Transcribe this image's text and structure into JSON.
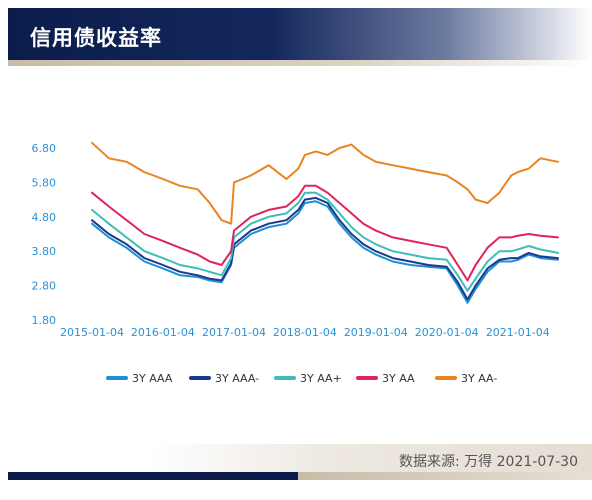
{
  "header": {
    "title": "信用债收益率"
  },
  "source": {
    "text": "数据来源:  万得 2021-07-30"
  },
  "chart_data": {
    "type": "line",
    "title": "",
    "xlabel": "",
    "ylabel": "",
    "ylim": [
      1.8,
      6.8
    ],
    "yticks": [
      "1.80",
      "2.80",
      "3.80",
      "4.80",
      "5.80",
      "6.80"
    ],
    "xlim": [
      "2015-01-04",
      "2021-07-30"
    ],
    "xticks": [
      "2015-01-04",
      "2016-01-04",
      "2017-01-04",
      "2018-01-04",
      "2019-01-04",
      "2020-01-04",
      "2021-01-04"
    ],
    "grid": false,
    "legend_position": "bottom",
    "series": [
      {
        "name": "3Y AAA",
        "color": "#1f8fd4",
        "x": [
          "2015-01-04",
          "2015-04-01",
          "2015-07-01",
          "2015-10-01",
          "2016-01-04",
          "2016-04-01",
          "2016-07-01",
          "2016-09-01",
          "2016-11-01",
          "2016-12-20",
          "2017-01-04",
          "2017-04-01",
          "2017-07-01",
          "2017-10-01",
          "2017-12-01",
          "2018-01-04",
          "2018-03-01",
          "2018-05-01",
          "2018-07-01",
          "2018-09-01",
          "2018-11-01",
          "2019-01-04",
          "2019-04-01",
          "2019-07-01",
          "2019-10-01",
          "2020-01-04",
          "2020-03-01",
          "2020-04-20",
          "2020-06-01",
          "2020-08-01",
          "2020-10-01",
          "2020-12-01",
          "2021-01-04",
          "2021-03-01",
          "2021-05-01",
          "2021-07-30"
        ],
        "y": [
          4.6,
          4.2,
          3.9,
          3.5,
          3.3,
          3.1,
          3.05,
          2.95,
          2.9,
          3.4,
          3.9,
          4.3,
          4.5,
          4.6,
          4.9,
          5.2,
          5.25,
          5.1,
          4.6,
          4.2,
          3.9,
          3.7,
          3.5,
          3.4,
          3.35,
          3.3,
          2.8,
          2.3,
          2.7,
          3.2,
          3.5,
          3.5,
          3.55,
          3.7,
          3.6,
          3.55
        ]
      },
      {
        "name": "3Y AAA-",
        "color": "#1a3a8c",
        "x": [
          "2015-01-04",
          "2015-04-01",
          "2015-07-01",
          "2015-10-01",
          "2016-01-04",
          "2016-04-01",
          "2016-07-01",
          "2016-09-01",
          "2016-11-01",
          "2016-12-20",
          "2017-01-04",
          "2017-04-01",
          "2017-07-01",
          "2017-10-01",
          "2017-12-01",
          "2018-01-04",
          "2018-03-01",
          "2018-05-01",
          "2018-07-01",
          "2018-09-01",
          "2018-11-01",
          "2019-01-04",
          "2019-04-01",
          "2019-07-01",
          "2019-10-01",
          "2020-01-04",
          "2020-03-01",
          "2020-04-20",
          "2020-06-01",
          "2020-08-01",
          "2020-10-01",
          "2020-12-01",
          "2021-01-04",
          "2021-03-01",
          "2021-05-01",
          "2021-07-30"
        ],
        "y": [
          4.7,
          4.3,
          4.0,
          3.6,
          3.4,
          3.2,
          3.1,
          3.0,
          2.95,
          3.45,
          4.0,
          4.4,
          4.6,
          4.7,
          5.0,
          5.3,
          5.35,
          5.2,
          4.7,
          4.3,
          4.0,
          3.8,
          3.6,
          3.5,
          3.4,
          3.35,
          2.9,
          2.4,
          2.8,
          3.3,
          3.55,
          3.6,
          3.6,
          3.75,
          3.65,
          3.6
        ]
      },
      {
        "name": "3Y AA+",
        "color": "#3fbcbc",
        "x": [
          "2015-01-04",
          "2015-04-01",
          "2015-07-01",
          "2015-10-01",
          "2016-01-04",
          "2016-04-01",
          "2016-07-01",
          "2016-09-01",
          "2016-11-01",
          "2016-12-20",
          "2017-01-04",
          "2017-04-01",
          "2017-07-01",
          "2017-10-01",
          "2017-12-01",
          "2018-01-04",
          "2018-03-01",
          "2018-05-01",
          "2018-07-01",
          "2018-09-01",
          "2018-11-01",
          "2019-01-04",
          "2019-04-01",
          "2019-07-01",
          "2019-10-01",
          "2020-01-04",
          "2020-03-01",
          "2020-04-20",
          "2020-06-01",
          "2020-08-01",
          "2020-10-01",
          "2020-12-01",
          "2021-01-04",
          "2021-03-01",
          "2021-05-01",
          "2021-07-30"
        ],
        "y": [
          5.0,
          4.6,
          4.2,
          3.8,
          3.6,
          3.4,
          3.3,
          3.2,
          3.1,
          3.6,
          4.2,
          4.6,
          4.8,
          4.9,
          5.2,
          5.5,
          5.5,
          5.3,
          4.9,
          4.5,
          4.2,
          4.0,
          3.8,
          3.7,
          3.6,
          3.55,
          3.1,
          2.65,
          3.0,
          3.5,
          3.8,
          3.8,
          3.85,
          3.95,
          3.85,
          3.75
        ]
      },
      {
        "name": "3Y AA",
        "color": "#e0245a",
        "x": [
          "2015-01-04",
          "2015-04-01",
          "2015-07-01",
          "2015-10-01",
          "2016-01-04",
          "2016-04-01",
          "2016-07-01",
          "2016-09-01",
          "2016-11-01",
          "2016-12-20",
          "2017-01-04",
          "2017-04-01",
          "2017-07-01",
          "2017-10-01",
          "2017-12-01",
          "2018-01-04",
          "2018-03-01",
          "2018-05-01",
          "2018-07-01",
          "2018-09-01",
          "2018-11-01",
          "2019-01-04",
          "2019-04-01",
          "2019-07-01",
          "2019-10-01",
          "2020-01-04",
          "2020-03-01",
          "2020-04-20",
          "2020-06-01",
          "2020-08-01",
          "2020-10-01",
          "2020-12-01",
          "2021-01-04",
          "2021-03-01",
          "2021-05-01",
          "2021-07-30"
        ],
        "y": [
          5.5,
          5.1,
          4.7,
          4.3,
          4.1,
          3.9,
          3.7,
          3.5,
          3.4,
          3.8,
          4.4,
          4.8,
          5.0,
          5.1,
          5.4,
          5.7,
          5.7,
          5.5,
          5.2,
          4.9,
          4.6,
          4.4,
          4.2,
          4.1,
          4.0,
          3.9,
          3.4,
          2.95,
          3.4,
          3.9,
          4.2,
          4.2,
          4.25,
          4.3,
          4.25,
          4.2
        ]
      },
      {
        "name": "3Y AA-",
        "color": "#ea8420",
        "x": [
          "2015-01-04",
          "2015-04-01",
          "2015-07-01",
          "2015-10-01",
          "2016-01-04",
          "2016-04-01",
          "2016-07-01",
          "2016-09-01",
          "2016-11-01",
          "2016-12-20",
          "2017-01-04",
          "2017-04-01",
          "2017-07-01",
          "2017-10-01",
          "2017-12-01",
          "2018-01-04",
          "2018-03-01",
          "2018-05-01",
          "2018-07-01",
          "2018-09-01",
          "2018-11-01",
          "2019-01-04",
          "2019-04-01",
          "2019-07-01",
          "2019-10-01",
          "2020-01-04",
          "2020-03-01",
          "2020-04-20",
          "2020-06-01",
          "2020-08-01",
          "2020-10-01",
          "2020-12-01",
          "2021-01-04",
          "2021-03-01",
          "2021-05-01",
          "2021-07-30"
        ],
        "y": [
          6.95,
          6.5,
          6.4,
          6.1,
          5.9,
          5.7,
          5.6,
          5.2,
          4.7,
          4.6,
          5.8,
          6.0,
          6.3,
          5.9,
          6.2,
          6.6,
          6.7,
          6.6,
          6.8,
          6.9,
          6.6,
          6.4,
          6.3,
          6.2,
          6.1,
          6.0,
          5.8,
          5.6,
          5.3,
          5.2,
          5.5,
          6.0,
          6.1,
          6.2,
          6.5,
          6.4
        ]
      }
    ]
  }
}
